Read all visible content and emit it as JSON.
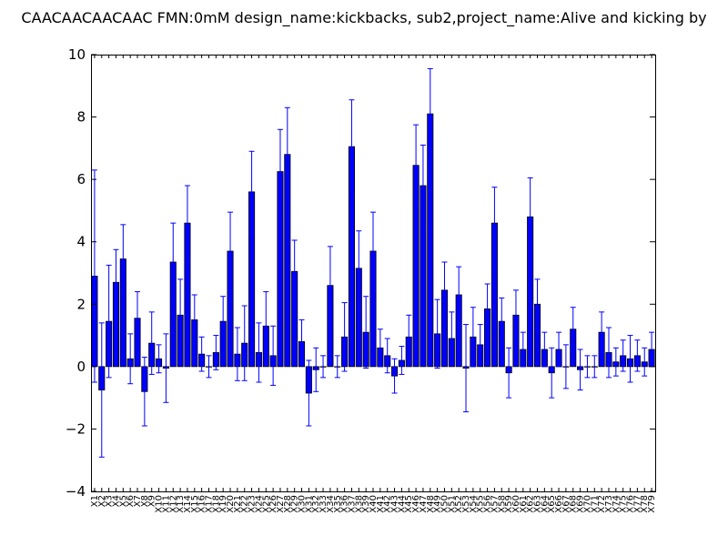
{
  "chart_data": {
    "type": "bar",
    "title": "CAACAACAACAAC  FMN:0mM  design_name:kickbacks, sub2,project_name:Alive and kicking by",
    "xlabel": "",
    "ylabel": "",
    "ylim": [
      -4,
      10
    ],
    "yticks": [
      "−4",
      "−2",
      "0",
      "2",
      "4",
      "6",
      "8",
      "10"
    ],
    "grid": false,
    "bar_color": "#0000ff",
    "error_color": "#0000ff",
    "categories": [
      "X1",
      "X2",
      "X3",
      "X4",
      "X5",
      "X6",
      "X7",
      "X8",
      "X9",
      "X10",
      "X11",
      "X12",
      "X13",
      "X14",
      "X15",
      "X16",
      "X17",
      "X18",
      "X19",
      "X20",
      "X21",
      "X22",
      "X23",
      "X24",
      "X25",
      "X26",
      "X27",
      "X28",
      "X29",
      "X30",
      "X31",
      "X32",
      "X33",
      "X34",
      "X35",
      "X36",
      "X37",
      "X38",
      "X39",
      "X40",
      "X41",
      "X42",
      "X43",
      "X44",
      "X45",
      "X46",
      "X47",
      "X48",
      "X49",
      "X50",
      "X51",
      "X52",
      "X53",
      "X54",
      "X55",
      "X56",
      "X57",
      "X58",
      "X59",
      "X60",
      "X61",
      "X62",
      "X63",
      "X64",
      "X65",
      "X66",
      "X67",
      "X68",
      "X69",
      "X70",
      "X71",
      "X72",
      "X73",
      "X74",
      "X75",
      "X76",
      "X77",
      "X78",
      "X79"
    ],
    "values": [
      2.9,
      -0.75,
      1.45,
      2.7,
      3.45,
      0.25,
      1.55,
      -0.8,
      0.75,
      0.25,
      -0.05,
      3.35,
      1.65,
      4.6,
      1.5,
      0.4,
      0.0,
      0.45,
      1.45,
      3.7,
      0.4,
      0.75,
      5.6,
      0.45,
      1.3,
      0.35,
      6.25,
      6.8,
      3.05,
      0.8,
      -0.85,
      -0.1,
      0.0,
      2.6,
      0.0,
      0.95,
      7.05,
      3.15,
      1.1,
      3.7,
      0.6,
      0.35,
      -0.3,
      0.2,
      0.95,
      6.45,
      5.8,
      8.1,
      1.05,
      2.45,
      0.9,
      2.3,
      -0.05,
      0.95,
      0.7,
      1.85,
      4.6,
      1.45,
      -0.2,
      1.65,
      0.55,
      4.8,
      2.0,
      0.55,
      -0.2,
      0.55,
      0.0,
      1.2,
      -0.1,
      0.0,
      0.0,
      1.1,
      0.45,
      0.15,
      0.35,
      0.25,
      0.35,
      0.15,
      0.55
    ],
    "errors": [
      3.4,
      2.15,
      1.8,
      1.05,
      1.1,
      0.8,
      0.85,
      1.1,
      1.0,
      0.45,
      1.1,
      1.25,
      1.15,
      1.2,
      0.8,
      0.55,
      0.35,
      0.55,
      0.8,
      1.25,
      0.85,
      1.2,
      1.3,
      0.95,
      1.1,
      0.95,
      1.35,
      1.5,
      1.0,
      0.7,
      1.05,
      0.7,
      0.35,
      1.25,
      0.35,
      1.1,
      1.5,
      1.2,
      1.15,
      1.25,
      0.6,
      0.55,
      0.55,
      0.45,
      0.7,
      1.3,
      1.3,
      1.45,
      1.1,
      0.9,
      0.85,
      0.9,
      1.4,
      0.95,
      0.65,
      0.8,
      1.15,
      0.75,
      0.8,
      0.8,
      0.55,
      1.25,
      0.8,
      0.55,
      0.8,
      0.55,
      0.7,
      0.7,
      0.65,
      0.35,
      0.35,
      0.65,
      0.8,
      0.45,
      0.5,
      0.75,
      0.5,
      0.45,
      0.55
    ]
  }
}
